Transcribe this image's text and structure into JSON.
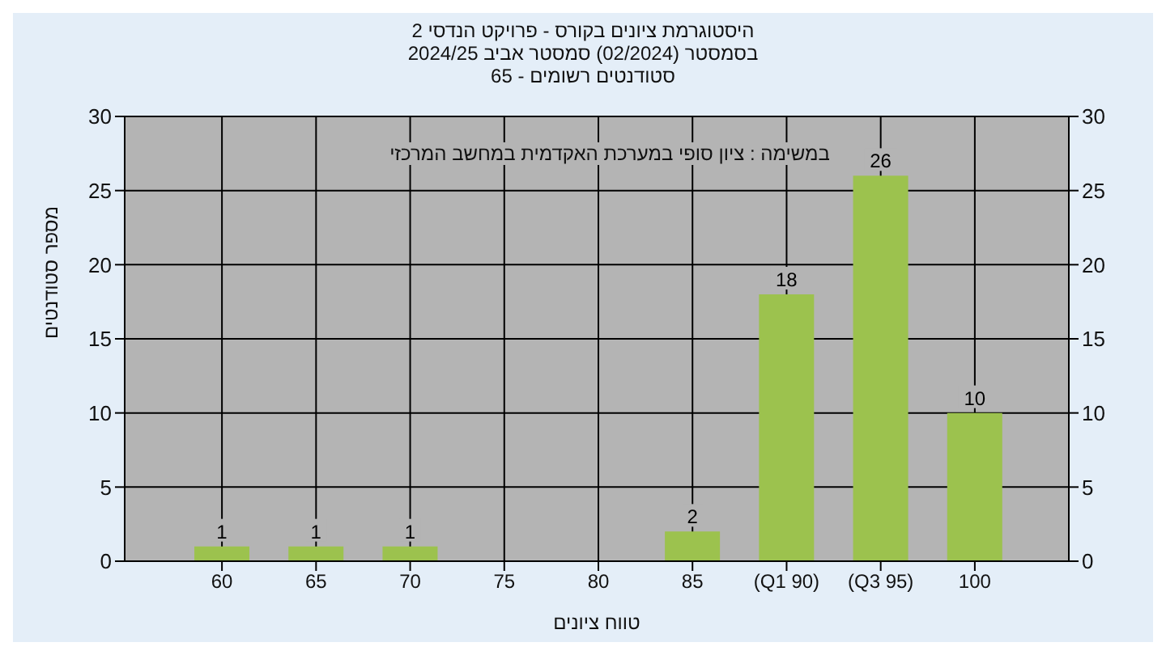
{
  "chart_data": {
    "type": "bar",
    "title": "היסטוגרמת ציונים בקורס - פרויקט הנדסי 2",
    "subtitle": "בסמסטר  (02/2024)  סמסטר אביב 2024/25\nסטודנטים רשומים - 65",
    "xlabel": "טווח ציונים",
    "ylabel": "מספר סטודנטים",
    "annotations": [
      "במשימה : ציון סופי במערכת האקדמית במחשב המרכזי"
    ],
    "categories": [
      "60",
      "65",
      "70",
      "75",
      "80",
      "85",
      "(Q1 90)",
      "(Q3 95)",
      "100"
    ],
    "values": [
      1,
      1,
      1,
      0,
      0,
      2,
      18,
      26,
      10
    ],
    "value_labels": [
      "1",
      "1",
      "1",
      null,
      null,
      "2",
      "18",
      "26",
      "10"
    ],
    "color": "#9cc24e",
    "ylim": [
      0,
      30
    ],
    "yticks": [
      0,
      5,
      10,
      15,
      20,
      25,
      30
    ],
    "y2lim": [
      0,
      30
    ],
    "y2ticks": [
      0,
      5,
      10,
      15,
      20,
      25,
      30
    ],
    "grid": true,
    "legend": false
  }
}
